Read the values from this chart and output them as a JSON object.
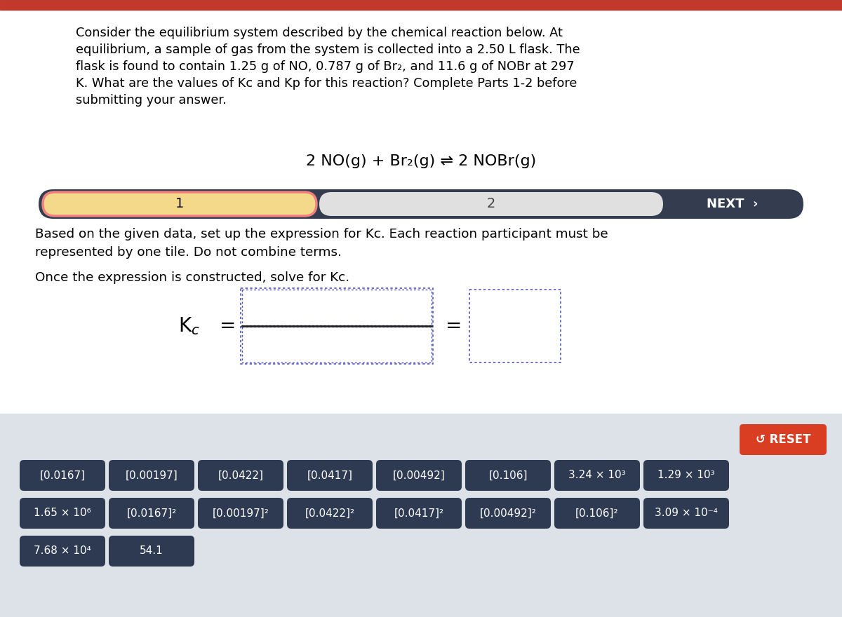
{
  "title_lines": [
    "Consider the equilibrium system described by the chemical reaction below. At",
    "equilibrium, a sample of gas from the system is collected into a 2.50 L flask. The",
    "flask is found to contain 1.25 g of NO, 0.787 g of Br₂, and 11.6 g of NOBr at 297",
    "K. What are the values of Kc and Kp for this reaction? Complete Parts 1-2 before",
    "submitting your answer."
  ],
  "reaction": "2 NO(g) + Br₂(g) ⇌ 2 NOBr(g)",
  "instr1_lines": [
    "Based on the given data, set up the expression for Kc. Each reaction participant must be",
    "represented by one tile. Do not combine terms."
  ],
  "instr2": "Once the expression is constructed, solve for Kc.",
  "step_bar_bg": "#343d4f",
  "step1_fill": "#f5d98b",
  "step1_border": "#f08080",
  "step2_fill": "#e0e0e0",
  "next_text": "NEXT  ›",
  "reset_btn_color": "#d93d22",
  "reset_text": "↺ RESET",
  "tile_bg": "#2d3a52",
  "tile_text_color": "#ffffff",
  "bottom_bg": "#dde1e8",
  "white_bg": "#ffffff",
  "top_bar_color": "#c0392b",
  "tiles_row1": [
    "[0.0167]",
    "[0.00197]",
    "[0.0422]",
    "[0.0417]",
    "[0.00492]",
    "[0.106]",
    "3.24 × 10³",
    "1.29 × 10³"
  ],
  "tiles_row2": [
    "1.65 × 10⁶",
    "[0.0167]²",
    "[0.00197]²",
    "[0.0422]²",
    "[0.0417]²",
    "[0.00492]²",
    "[0.106]²",
    "3.09 × 10⁻⁴"
  ],
  "tiles_row3": [
    "7.68 × 10⁴",
    "54.1"
  ],
  "dotted_color": "#5555bb"
}
